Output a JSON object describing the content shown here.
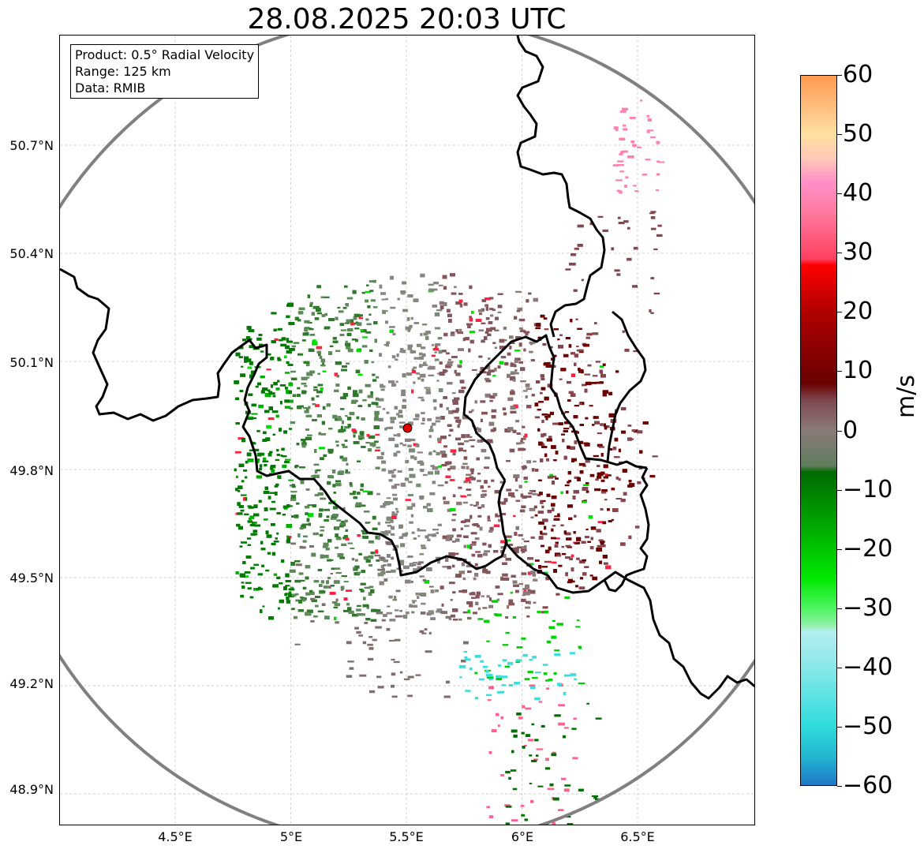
{
  "title": "28.08.2025 20:03 UTC",
  "info_box": {
    "product": "Product: 0.5° Radial Velocity",
    "range": "Range: 125 km",
    "data": "Data: RMIB"
  },
  "axes": {
    "lat_ticks": [
      {
        "value": 50.7,
        "label": "50.7°N"
      },
      {
        "value": 50.4,
        "label": "50.4°N"
      },
      {
        "value": 50.1,
        "label": "50.1°N"
      },
      {
        "value": 49.8,
        "label": "49.8°N"
      },
      {
        "value": 49.5,
        "label": "49.5°N"
      },
      {
        "value": 49.2,
        "label": "49.2°N"
      },
      {
        "value": 48.9,
        "label": "48.9°N"
      }
    ],
    "lon_ticks": [
      {
        "value": 4.5,
        "label": "4.5°E"
      },
      {
        "value": 5.0,
        "label": "5°E"
      },
      {
        "value": 5.5,
        "label": "5.5°E"
      },
      {
        "value": 6.0,
        "label": "6°E"
      },
      {
        "value": 6.5,
        "label": "6.5°E"
      }
    ],
    "lon_range": [
      4.0,
      7.0
    ],
    "lat_range": [
      48.8,
      51.0
    ]
  },
  "radar": {
    "lon": 5.505,
    "lat": 49.915,
    "marker_color": "#e00000"
  },
  "colorbar": {
    "label": "m/s",
    "min": -60,
    "max": 60,
    "ticks": [
      "60",
      "50",
      "40",
      "30",
      "20",
      "10",
      "0",
      "−10",
      "−20",
      "−30",
      "−40",
      "−50",
      "−60"
    ],
    "stops": [
      {
        "v": -60,
        "c": "#1f78c8"
      },
      {
        "v": -55,
        "c": "#22b8d0"
      },
      {
        "v": -50,
        "c": "#2fdcdc"
      },
      {
        "v": -40,
        "c": "#8ae8ea"
      },
      {
        "v": -34,
        "c": "#b4eef0"
      },
      {
        "v": -33,
        "c": "#90f0a8"
      },
      {
        "v": -30,
        "c": "#4cf560"
      },
      {
        "v": -25,
        "c": "#00e800"
      },
      {
        "v": -15,
        "c": "#00a000"
      },
      {
        "v": -7,
        "c": "#006a00"
      },
      {
        "v": -6,
        "c": "#5e7e5c"
      },
      {
        "v": 0,
        "c": "#8a7a78"
      },
      {
        "v": 5,
        "c": "#7e4a52"
      },
      {
        "v": 8,
        "c": "#6a0000"
      },
      {
        "v": 20,
        "c": "#b00000"
      },
      {
        "v": 28,
        "c": "#ff0000"
      },
      {
        "v": 29,
        "c": "#ff4060"
      },
      {
        "v": 37,
        "c": "#ff7aa0"
      },
      {
        "v": 42,
        "c": "#ff90c8"
      },
      {
        "v": 46,
        "c": "#ffc8b8"
      },
      {
        "v": 50,
        "c": "#ffe0a0"
      },
      {
        "v": 55,
        "c": "#ffbc7c"
      },
      {
        "v": 60,
        "c": "#ff9a50"
      }
    ]
  },
  "colors": {
    "border": "#000000",
    "range_ring": "#808080",
    "approaching": "#007000",
    "receding": "#7a0000",
    "zero": "#8a7a78"
  }
}
